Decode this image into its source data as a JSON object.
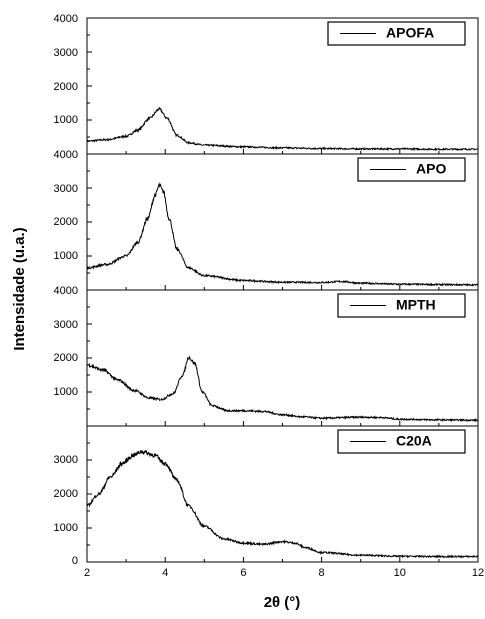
{
  "chart_data": {
    "type": "line",
    "layout": "stacked-panels",
    "xlabel": "2θ (°)",
    "ylabel": "Intensidade (u.a.)",
    "xlim": [
      2,
      12
    ],
    "x_ticks": [
      "2",
      "4",
      "6",
      "8",
      "10",
      "12"
    ],
    "grid": false,
    "legend_position": "top-right",
    "line_color": "#000000",
    "series": [
      {
        "name": "APOFA",
        "ylim": [
          0,
          4000
        ],
        "y_ticks": [
          "1000",
          "2000",
          "3000",
          "4000"
        ],
        "points": [
          [
            2.0,
            380
          ],
          [
            2.5,
            420
          ],
          [
            3.0,
            520
          ],
          [
            3.3,
            700
          ],
          [
            3.6,
            1050
          ],
          [
            3.85,
            1320
          ],
          [
            4.05,
            1050
          ],
          [
            4.3,
            550
          ],
          [
            4.6,
            330
          ],
          [
            5.0,
            260
          ],
          [
            6.0,
            210
          ],
          [
            7.0,
            180
          ],
          [
            8.0,
            160
          ],
          [
            9.0,
            150
          ],
          [
            10.0,
            150
          ],
          [
            11.0,
            140
          ],
          [
            12.0,
            140
          ]
        ]
      },
      {
        "name": "APO",
        "ylim": [
          0,
          4000
        ],
        "y_ticks": [
          "1000",
          "2000",
          "3000",
          "4000"
        ],
        "points": [
          [
            2.0,
            650
          ],
          [
            2.5,
            750
          ],
          [
            3.0,
            1000
          ],
          [
            3.3,
            1400
          ],
          [
            3.55,
            2100
          ],
          [
            3.75,
            2800
          ],
          [
            3.85,
            3080
          ],
          [
            3.95,
            2900
          ],
          [
            4.1,
            2100
          ],
          [
            4.3,
            1200
          ],
          [
            4.6,
            650
          ],
          [
            5.0,
            420
          ],
          [
            6.0,
            280
          ],
          [
            7.0,
            230
          ],
          [
            8.0,
            220
          ],
          [
            8.5,
            250
          ],
          [
            9.0,
            200
          ],
          [
            10.0,
            170
          ],
          [
            11.0,
            160
          ],
          [
            12.0,
            150
          ]
        ]
      },
      {
        "name": "MPTH",
        "ylim": [
          0,
          4000
        ],
        "y_ticks": [
          "1000",
          "2000",
          "3000",
          "4000"
        ],
        "points": [
          [
            2.0,
            1800
          ],
          [
            2.4,
            1650
          ],
          [
            2.8,
            1350
          ],
          [
            3.2,
            1050
          ],
          [
            3.6,
            820
          ],
          [
            3.9,
            780
          ],
          [
            4.2,
            950
          ],
          [
            4.45,
            1500
          ],
          [
            4.6,
            2020
          ],
          [
            4.75,
            1850
          ],
          [
            4.95,
            1000
          ],
          [
            5.2,
            600
          ],
          [
            5.6,
            450
          ],
          [
            6.0,
            450
          ],
          [
            6.5,
            430
          ],
          [
            7.0,
            330
          ],
          [
            7.5,
            270
          ],
          [
            8.0,
            230
          ],
          [
            9.0,
            260
          ],
          [
            9.5,
            250
          ],
          [
            10.0,
            200
          ],
          [
            11.0,
            180
          ],
          [
            12.0,
            170
          ]
        ]
      },
      {
        "name": "C20A",
        "ylim": [
          0,
          4000
        ],
        "y_ticks": [
          "0",
          "1000",
          "2000",
          "3000"
        ],
        "points": [
          [
            2.0,
            1650
          ],
          [
            2.3,
            2000
          ],
          [
            2.6,
            2500
          ],
          [
            2.9,
            2900
          ],
          [
            3.2,
            3150
          ],
          [
            3.4,
            3250
          ],
          [
            3.7,
            3150
          ],
          [
            4.0,
            2900
          ],
          [
            4.3,
            2400
          ],
          [
            4.6,
            1650
          ],
          [
            5.0,
            1050
          ],
          [
            5.5,
            680
          ],
          [
            6.0,
            560
          ],
          [
            6.5,
            520
          ],
          [
            7.0,
            600
          ],
          [
            7.3,
            560
          ],
          [
            7.6,
            420
          ],
          [
            8.0,
            280
          ],
          [
            9.0,
            200
          ],
          [
            10.0,
            170
          ],
          [
            11.0,
            160
          ],
          [
            12.0,
            160
          ]
        ]
      }
    ]
  }
}
